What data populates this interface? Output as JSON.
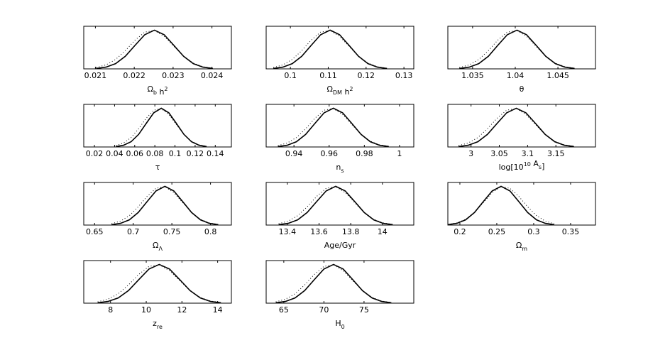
{
  "chart_data": [
    {
      "type": "line",
      "xlabel": [
        {
          "text": "Ω"
        },
        {
          "sub": "b"
        },
        {
          "text": " h"
        },
        {
          "sup": "2"
        }
      ],
      "xlim": [
        0.0207,
        0.0245
      ],
      "xticks": [
        0.021,
        0.022,
        0.023,
        0.024
      ],
      "ylim": [
        0,
        1.1
      ],
      "x": [
        0.02102,
        0.02127,
        0.02152,
        0.02177,
        0.02202,
        0.02227,
        0.02252,
        0.02277,
        0.02302,
        0.02327,
        0.02352,
        0.02377,
        0.02402
      ],
      "series": [
        {
          "style": "solid",
          "color": "#000000",
          "values": [
            0.011,
            0.044,
            0.135,
            0.325,
            0.607,
            0.882,
            1,
            0.882,
            0.607,
            0.325,
            0.135,
            0.044,
            0.011
          ]
        },
        {
          "style": "dotted",
          "color": "#000000",
          "values": [
            0.035,
            0.102,
            0.243,
            0.471,
            0.742,
            0.95,
            0.991,
            0.84,
            0.579,
            0.325,
            0.148,
            0.055,
            0.017
          ]
        }
      ]
    },
    {
      "type": "line",
      "xlabel": [
        {
          "text": "Ω"
        },
        {
          "sub": "DM"
        },
        {
          "text": " h"
        },
        {
          "sup": "2"
        }
      ],
      "xlim": [
        0.0936,
        0.1326
      ],
      "xticks": [
        0.1,
        0.11,
        0.12,
        0.13
      ],
      "ylim": [
        0,
        1.1
      ],
      "x": [
        0.0955,
        0.098,
        0.1005,
        0.103,
        0.1055,
        0.108,
        0.1105,
        0.113,
        0.1155,
        0.118,
        0.1205,
        0.123,
        0.1255
      ],
      "series": [
        {
          "style": "solid",
          "color": "#000000",
          "values": [
            0.011,
            0.044,
            0.135,
            0.325,
            0.607,
            0.882,
            1,
            0.882,
            0.607,
            0.325,
            0.135,
            0.044,
            0.011
          ]
        },
        {
          "style": "dotted",
          "color": "#000000",
          "values": [
            0.035,
            0.102,
            0.243,
            0.471,
            0.742,
            0.95,
            0.991,
            0.84,
            0.579,
            0.325,
            0.148,
            0.055,
            0.017
          ]
        }
      ]
    },
    {
      "type": "line",
      "xlabel": [
        {
          "text": "θ"
        }
      ],
      "xlim": [
        1.0321,
        1.0494
      ],
      "xticks": [
        1.035,
        1.04,
        1.045
      ],
      "ylim": [
        0,
        1.1
      ],
      "x": [
        1.03345,
        1.0346,
        1.03572,
        1.03685,
        1.03795,
        1.03907,
        1.0402,
        1.04132,
        1.04245,
        1.04357,
        1.0447,
        1.04582,
        1.04695
      ],
      "series": [
        {
          "style": "solid",
          "color": "#000000",
          "values": [
            0.011,
            0.044,
            0.135,
            0.325,
            0.607,
            0.882,
            1,
            0.882,
            0.607,
            0.325,
            0.135,
            0.044,
            0.011
          ]
        },
        {
          "style": "dotted",
          "color": "#000000",
          "values": [
            0.035,
            0.102,
            0.243,
            0.471,
            0.742,
            0.95,
            0.991,
            0.84,
            0.579,
            0.325,
            0.148,
            0.055,
            0.017
          ]
        }
      ]
    },
    {
      "type": "line",
      "xlabel": [
        {
          "text": "τ"
        }
      ],
      "xlim": [
        0.0094,
        0.156
      ],
      "xticks": [
        0.02,
        0.04,
        0.06,
        0.08,
        0.1,
        0.12,
        0.14
      ],
      "ylim": [
        0,
        1.1
      ],
      "x": [
        0.0414,
        0.0489,
        0.0564,
        0.0639,
        0.0714,
        0.0789,
        0.0864,
        0.0939,
        0.1014,
        0.1089,
        0.1164,
        0.1239,
        0.1314
      ],
      "series": [
        {
          "style": "solid",
          "color": "#000000",
          "values": [
            0.011,
            0.044,
            0.135,
            0.325,
            0.607,
            0.882,
            1,
            0.882,
            0.607,
            0.325,
            0.135,
            0.044,
            0.011
          ]
        },
        {
          "style": "dotted",
          "color": "#000000",
          "values": [
            0.035,
            0.102,
            0.243,
            0.471,
            0.742,
            0.95,
            0.991,
            0.84,
            0.579,
            0.325,
            0.148,
            0.055,
            0.017
          ]
        }
      ]
    },
    {
      "type": "line",
      "xlabel": [
        {
          "text": "n"
        },
        {
          "sub": "s"
        }
      ],
      "xlim": [
        0.9242,
        1.0081
      ],
      "xticks": [
        0.94,
        0.96,
        0.98,
        1
      ],
      "ylim": [
        0,
        1.1
      ],
      "x": [
        0.9309,
        0.93615,
        0.9414,
        0.94665,
        0.9519,
        0.95715,
        0.9624,
        0.96765,
        0.9729,
        0.97815,
        0.9834,
        0.98865,
        0.9939
      ],
      "series": [
        {
          "style": "solid",
          "color": "#000000",
          "values": [
            0.011,
            0.044,
            0.135,
            0.325,
            0.607,
            0.882,
            1,
            0.882,
            0.607,
            0.325,
            0.135,
            0.044,
            0.011
          ]
        },
        {
          "style": "dotted",
          "color": "#000000",
          "values": [
            0.035,
            0.102,
            0.243,
            0.471,
            0.742,
            0.95,
            0.991,
            0.84,
            0.579,
            0.325,
            0.148,
            0.055,
            0.017
          ]
        }
      ]
    },
    {
      "type": "line",
      "xlabel": [
        {
          "text": "log[10"
        },
        {
          "sup": "10"
        },
        {
          "text": " A"
        },
        {
          "sub": "s"
        },
        {
          "text": "]"
        }
      ],
      "xlim": [
        2.959,
        3.22
      ],
      "xticks": [
        3,
        3.05,
        3.1,
        3.15
      ],
      "ylim": [
        0,
        1.1
      ],
      "x": [
        2.978,
        2.995,
        3.012,
        3.029,
        3.046,
        3.063,
        3.08,
        3.097,
        3.114,
        3.131,
        3.148,
        3.165,
        3.182
      ],
      "series": [
        {
          "style": "solid",
          "color": "#000000",
          "values": [
            0.011,
            0.044,
            0.135,
            0.325,
            0.607,
            0.882,
            1,
            0.882,
            0.607,
            0.325,
            0.135,
            0.044,
            0.011
          ]
        },
        {
          "style": "dotted",
          "color": "#000000",
          "values": [
            0.035,
            0.102,
            0.243,
            0.471,
            0.742,
            0.95,
            0.991,
            0.84,
            0.579,
            0.325,
            0.148,
            0.055,
            0.017
          ]
        }
      ]
    },
    {
      "type": "line",
      "xlabel": [
        {
          "text": "Ω"
        },
        {
          "sub": "Λ"
        }
      ],
      "xlim": [
        0.636,
        0.827
      ],
      "xticks": [
        0.65,
        0.7,
        0.75,
        0.8
      ],
      "ylim": [
        0,
        1.1
      ],
      "x": [
        0.672,
        0.6835,
        0.695,
        0.7065,
        0.718,
        0.7295,
        0.741,
        0.7525,
        0.764,
        0.7755,
        0.787,
        0.7985,
        0.81
      ],
      "series": [
        {
          "style": "solid",
          "color": "#000000",
          "values": [
            0.011,
            0.044,
            0.135,
            0.325,
            0.607,
            0.882,
            1,
            0.882,
            0.607,
            0.325,
            0.135,
            0.044,
            0.011
          ]
        },
        {
          "style": "dotted",
          "color": "#000000",
          "values": [
            0.035,
            0.102,
            0.243,
            0.471,
            0.742,
            0.95,
            0.991,
            0.84,
            0.579,
            0.325,
            0.148,
            0.055,
            0.017
          ]
        }
      ]
    },
    {
      "type": "line",
      "xlabel": [
        {
          "text": "Age/Gyr"
        }
      ],
      "xlim": [
        13.266,
        14.198
      ],
      "xticks": [
        13.4,
        13.6,
        13.8,
        14
      ],
      "ylim": [
        0,
        1.1
      ],
      "x": [
        13.345,
        13.405,
        13.465,
        13.525,
        13.585,
        13.645,
        13.705,
        13.765,
        13.825,
        13.885,
        13.945,
        14.005,
        14.065
      ],
      "series": [
        {
          "style": "solid",
          "color": "#000000",
          "values": [
            0.011,
            0.044,
            0.135,
            0.325,
            0.607,
            0.882,
            1,
            0.882,
            0.607,
            0.325,
            0.135,
            0.044,
            0.011
          ]
        },
        {
          "style": "dotted",
          "color": "#000000",
          "values": [
            0.035,
            0.102,
            0.243,
            0.471,
            0.742,
            0.95,
            0.991,
            0.84,
            0.579,
            0.325,
            0.148,
            0.055,
            0.017
          ]
        }
      ]
    },
    {
      "type": "line",
      "xlabel": [
        {
          "text": "Ω"
        },
        {
          "sub": "m"
        }
      ],
      "xlim": [
        0.1837,
        0.3837
      ],
      "xticks": [
        0.2,
        0.25,
        0.3,
        0.35
      ],
      "ylim": [
        0,
        1.1
      ],
      "x": [
        0.1838,
        0.1958,
        0.2078,
        0.2198,
        0.2318,
        0.2438,
        0.2558,
        0.2678,
        0.2798,
        0.2918,
        0.3038,
        0.3158,
        0.3278
      ],
      "series": [
        {
          "style": "solid",
          "color": "#000000",
          "values": [
            0.011,
            0.044,
            0.135,
            0.325,
            0.607,
            0.882,
            1,
            0.882,
            0.607,
            0.325,
            0.135,
            0.044,
            0.011
          ]
        },
        {
          "style": "dotted",
          "color": "#000000",
          "values": [
            0.017,
            0.055,
            0.148,
            0.325,
            0.579,
            0.84,
            0.991,
            0.95,
            0.742,
            0.471,
            0.243,
            0.102,
            0.035
          ]
        }
      ]
    },
    {
      "type": "line",
      "xlabel": [
        {
          "text": "z"
        },
        {
          "sub": "re"
        }
      ],
      "xlim": [
        6.5,
        14.77
      ],
      "xticks": [
        8,
        10,
        12,
        14
      ],
      "ylim": [
        0,
        1.1
      ],
      "x": [
        7.28,
        7.855,
        8.43,
        9.005,
        9.58,
        10.155,
        10.73,
        11.305,
        11.88,
        12.455,
        13.03,
        13.605,
        14.18
      ],
      "series": [
        {
          "style": "solid",
          "color": "#000000",
          "values": [
            0.011,
            0.044,
            0.135,
            0.325,
            0.607,
            0.882,
            1,
            0.882,
            0.607,
            0.325,
            0.135,
            0.044,
            0.011
          ]
        },
        {
          "style": "dotted",
          "color": "#000000",
          "values": [
            0.035,
            0.102,
            0.243,
            0.471,
            0.742,
            0.95,
            0.991,
            0.84,
            0.579,
            0.325,
            0.148,
            0.055,
            0.017
          ]
        }
      ]
    },
    {
      "type": "line",
      "xlabel": [
        {
          "text": "H"
        },
        {
          "sub": "0"
        }
      ],
      "xlim": [
        62.8,
        81.2
      ],
      "xticks": [
        65,
        70,
        75
      ],
      "ylim": [
        0,
        1.1
      ],
      "x": [
        64,
        65.2,
        66.4,
        67.6,
        68.8,
        70,
        71.2,
        72.4,
        73.6,
        74.8,
        76,
        77.2,
        78.4
      ],
      "series": [
        {
          "style": "solid",
          "color": "#000000",
          "values": [
            0.011,
            0.044,
            0.135,
            0.325,
            0.607,
            0.882,
            1,
            0.882,
            0.607,
            0.325,
            0.135,
            0.044,
            0.011
          ]
        },
        {
          "style": "dotted",
          "color": "#000000",
          "values": [
            0.035,
            0.102,
            0.243,
            0.471,
            0.742,
            0.95,
            0.991,
            0.84,
            0.579,
            0.325,
            0.148,
            0.055,
            0.017
          ]
        }
      ]
    }
  ]
}
